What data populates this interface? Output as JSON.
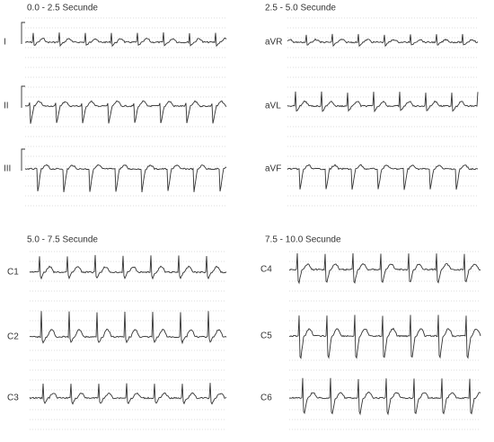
{
  "panels": [
    {
      "title": "0.0 - 2.5 Secunde",
      "leads": [
        "I",
        "II",
        "III"
      ]
    },
    {
      "title": "2.5 - 5.0 Secunde",
      "leads": [
        "aVR",
        "aVL",
        "aVF"
      ]
    },
    {
      "title": "5.0 - 7.5 Secunde",
      "leads": [
        "C1",
        "C2",
        "C3"
      ]
    },
    {
      "title": "7.5 - 10.0 Secunde",
      "leads": [
        "C4",
        "C5",
        "C6"
      ]
    }
  ]
}
